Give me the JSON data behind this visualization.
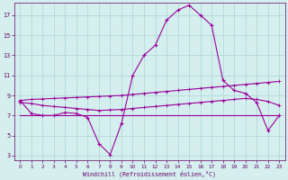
{
  "xlabel": "Windchill (Refroidissement éolien,°C)",
  "background_color": "#d5efef",
  "grid_color": "#aad4d4",
  "line_color": "#990099",
  "spine_color": "#660066",
  "x_hours": [
    0,
    1,
    2,
    3,
    4,
    5,
    6,
    7,
    8,
    9,
    10,
    11,
    12,
    13,
    14,
    15,
    16,
    17,
    18,
    19,
    20,
    21,
    22,
    23
  ],
  "curve_main": [
    8.5,
    7.2,
    7.0,
    7.0,
    7.3,
    7.2,
    6.8,
    4.2,
    3.1,
    6.2,
    11.0,
    13.0,
    14.0,
    16.5,
    17.5,
    18.0,
    17.0,
    16.0,
    10.5,
    9.5,
    9.2,
    8.3,
    5.5,
    7.0
  ],
  "curve_reg1": [
    8.5,
    8.6,
    8.65,
    8.7,
    8.75,
    8.8,
    8.85,
    8.9,
    8.95,
    9.0,
    9.1,
    9.2,
    9.3,
    9.4,
    9.5,
    9.6,
    9.7,
    9.8,
    9.9,
    10.0,
    10.1,
    10.2,
    10.3,
    10.4
  ],
  "curve_reg2": [
    8.3,
    8.2,
    8.0,
    7.9,
    7.8,
    7.7,
    7.6,
    7.5,
    7.55,
    7.6,
    7.7,
    7.8,
    7.9,
    8.0,
    8.1,
    8.2,
    8.3,
    8.4,
    8.5,
    8.6,
    8.7,
    8.6,
    8.4,
    8.0
  ],
  "curve_reg3": [
    7.0,
    7.0,
    7.0,
    7.0,
    7.0,
    7.0,
    7.0,
    7.0,
    7.0,
    7.0,
    7.0,
    7.0,
    7.0,
    7.0,
    7.0,
    7.0,
    7.0,
    7.0,
    7.0,
    7.0,
    7.0,
    7.0,
    7.0,
    7.0
  ],
  "ylim_min": 2.5,
  "ylim_max": 18.2,
  "yticks": [
    3,
    5,
    7,
    9,
    11,
    13,
    15,
    17
  ],
  "xticks": [
    0,
    1,
    2,
    3,
    4,
    5,
    6,
    7,
    8,
    9,
    10,
    11,
    12,
    13,
    14,
    15,
    16,
    17,
    18,
    19,
    20,
    21,
    22,
    23
  ],
  "figsize": [
    3.2,
    2.0
  ],
  "dpi": 100
}
